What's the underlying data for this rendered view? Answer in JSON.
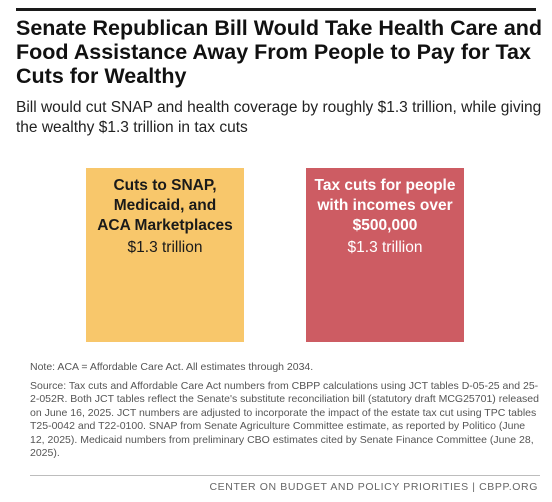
{
  "header": {
    "title": "Senate Republican Bill Would Take Health Care and Food Assistance Away From People to Pay for Tax Cuts for Wealthy",
    "subtitle": "Bill would cut SNAP and health coverage by roughly $1.3 trillion, while giving the wealthy $1.3 trillion in tax cuts"
  },
  "chart_data": {
    "type": "bar",
    "categories": [
      [
        "Cuts to SNAP,",
        "Medicaid, and",
        "ACA Marketplaces"
      ],
      [
        "Tax cuts for people",
        "with incomes over",
        "$500,000"
      ]
    ],
    "values": [
      1.3,
      1.3
    ],
    "value_labels": [
      "$1.3 trillion",
      "$1.3 trillion"
    ],
    "colors": [
      "#f8c76b",
      "#cd5c63"
    ],
    "label_colors": [
      "#1a1a1a",
      "#ffffff"
    ]
  },
  "notes": {
    "note": "Note: ACA = Affordable Care Act. All estimates through 2034.",
    "source": "Source: Tax cuts and Affordable Care Act numbers from CBPP calculations using JCT tables D-05-25 and 25-2-052R. Both JCT tables reflect the Senate's substitute reconciliation bill (statutory draft MCG25701) released on June 16, 2025. JCT numbers are adjusted to incorporate the impact of the estate tax cut using TPC tables T25-0042 and T22-0100. SNAP from Senate Agriculture Committee estimate, as reported by Politico (June 12, 2025). Medicaid numbers from preliminary CBO estimates cited by Senate Finance Committee (June 28, 2025)."
  },
  "footer": {
    "text": "CENTER ON BUDGET AND POLICY PRIORITIES | CBPP.ORG"
  }
}
